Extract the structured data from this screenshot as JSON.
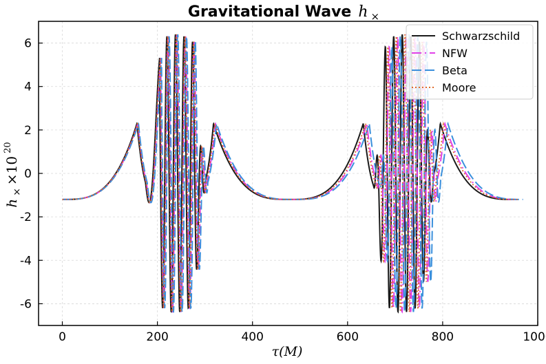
{
  "chart_data": {
    "type": "line",
    "title": "Gravitational Wave",
    "title_symbol": "h",
    "title_symbol_sub": "×",
    "xlabel": "τ(M)",
    "ylabel_main": "h",
    "ylabel_sub": "×",
    "ylabel_times": "×10",
    "ylabel_exp": "20",
    "xlim": [
      -50,
      1000
    ],
    "ylim": [
      -7,
      7
    ],
    "xticks": [
      0,
      200,
      400,
      600,
      800,
      1000
    ],
    "yticks": [
      6,
      4,
      2,
      0,
      -2,
      -4,
      -6
    ],
    "ytick_labels": [
      "6",
      "4",
      "2",
      "0",
      "-2",
      "-4",
      "-6"
    ],
    "grid": true,
    "legend_position": "top-right",
    "series": [
      {
        "name": "Schwarzschild",
        "color": "#1a1a1a",
        "dash": "solid",
        "tau_scale": 1.0,
        "tau_end": 950
      },
      {
        "name": "NFW",
        "color": "#e040e8",
        "dash": "dashdot",
        "tau_scale": 1.012,
        "tau_end": 975
      },
      {
        "name": "Beta",
        "color": "#3a8fdc",
        "dash": "dashed",
        "tau_scale": 1.02,
        "tau_end": 965
      },
      {
        "name": "Moore",
        "color": "#e06a2a",
        "dash": "dotted",
        "tau_scale": 1.008,
        "tau_end": 960
      }
    ],
    "waveform": {
      "baseline": -1.2,
      "plateau_peak": 2.3,
      "burst_max": 6.4,
      "burst_min": -6.4,
      "burst_inner_peak": 5.4,
      "burst_inner_trough": -4.1,
      "bursts_center_tau": [
        238,
        715
      ],
      "quiet_peaks_tau": [
        157,
        318,
        633,
        795
      ],
      "trough_tau": [
        0,
        478,
        950
      ]
    }
  }
}
